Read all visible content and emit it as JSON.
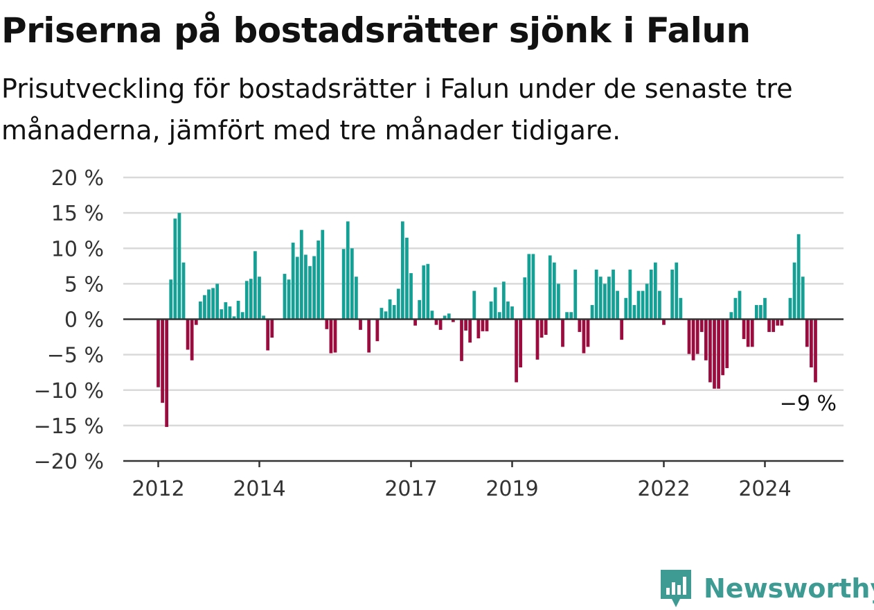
{
  "title": "Priserna på bostadsrätter sjönk i Falun",
  "subtitle": "Prisutveckling för bostadsrätter i Falun under de senaste tre månaderna, jämfört med tre månader tidigare.",
  "brand": {
    "name": "Newsworthy",
    "color": "#3d9b94"
  },
  "colors": {
    "positive": "#15a096",
    "negative": "#9b0b3e",
    "grid": "#d9d9d9",
    "axis": "#333333"
  },
  "chart_data": {
    "type": "bar",
    "xlabel": "",
    "ylabel": "",
    "ylim": [
      -20,
      20
    ],
    "yticks": [
      20,
      15,
      10,
      5,
      0,
      -5,
      -10,
      -15,
      -20
    ],
    "ytick_labels": [
      "20 %",
      "15 %",
      "10 %",
      "5 %",
      "0 %",
      "−5 %",
      "−10 %",
      "−15 %",
      "−20 %"
    ],
    "xticks": [
      2012,
      2014,
      2017,
      2019,
      2022,
      2024
    ],
    "xtick_labels": [
      "2012",
      "2014",
      "2017",
      "2019",
      "2022",
      "2024"
    ],
    "x_start": 2012,
    "x_step_months": 1,
    "grid": true,
    "annotation": {
      "text": "−9 %",
      "value": -9
    },
    "values": [
      -9.6,
      -11.8,
      -15.2,
      5.6,
      14.2,
      15.0,
      8.0,
      -4.3,
      -5.8,
      -0.8,
      2.5,
      3.4,
      4.2,
      4.4,
      5.0,
      1.4,
      2.4,
      1.8,
      0.4,
      2.6,
      1.0,
      5.4,
      5.7,
      9.6,
      6.0,
      0.5,
      -4.4,
      -2.6,
      0.0,
      0.0,
      6.4,
      5.6,
      10.8,
      8.8,
      12.6,
      9.1,
      7.5,
      8.9,
      11.1,
      12.6,
      -1.4,
      -4.8,
      -4.7,
      0.0,
      9.9,
      13.8,
      10.0,
      6.0,
      -1.5,
      0.0,
      -4.7,
      0.0,
      -3.1,
      1.6,
      1.1,
      2.8,
      2.0,
      4.3,
      13.8,
      11.5,
      6.5,
      -0.9,
      2.7,
      7.6,
      7.8,
      1.2,
      -0.8,
      -1.5,
      0.5,
      0.8,
      -0.4,
      0.0,
      -5.9,
      -1.6,
      -3.3,
      4.0,
      -2.7,
      -1.7,
      -1.7,
      2.5,
      4.5,
      1.0,
      5.3,
      2.5,
      1.8,
      -8.9,
      -6.8,
      5.9,
      9.2,
      9.2,
      -5.7,
      -2.6,
      -2.2,
      9.0,
      8.0,
      5.0,
      -3.9,
      1.0,
      1.0,
      7.0,
      -1.8,
      -4.8,
      -3.9,
      2.0,
      7.0,
      6.0,
      5.0,
      6.0,
      7.0,
      4.0,
      -2.9,
      3.0,
      7.0,
      2.0,
      4.0,
      4.0,
      5.0,
      7.0,
      8.0,
      4.0,
      -0.8,
      0.0,
      7.0,
      8.0,
      3.0,
      0.0,
      -4.9,
      -5.8,
      -4.9,
      -1.8,
      -5.8,
      -8.9,
      -9.8,
      -9.8,
      -7.9,
      -6.9,
      1.0,
      3.0,
      4.0,
      -2.8,
      -3.9,
      -3.9,
      2.0,
      2.0,
      3.0,
      -1.8,
      -1.8,
      -0.9,
      -0.9,
      0.0,
      3.0,
      8.0,
      12.0,
      6.0,
      -3.9,
      -6.8,
      -8.9
    ]
  }
}
